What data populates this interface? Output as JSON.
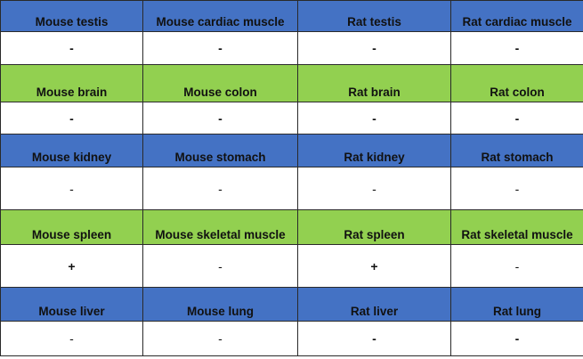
{
  "colors": {
    "blue_header": "#4472c4",
    "green_header": "#92d050",
    "border": "#2a2a2a"
  },
  "rows": [
    {
      "header_color": "blue",
      "labels": [
        "Mouse testis",
        "Mouse cardiac muscle",
        "Rat testis",
        "Rat cardiac muscle"
      ],
      "values": [
        "-",
        "-",
        "-",
        "-"
      ]
    },
    {
      "header_color": "green",
      "labels": [
        "Mouse brain",
        "Mouse colon",
        "Rat brain",
        "Rat colon"
      ],
      "values": [
        "-",
        "-",
        "-",
        "-"
      ]
    },
    {
      "header_color": "blue",
      "labels": [
        "Mouse kidney",
        "Mouse stomach",
        "Rat kidney",
        "Rat stomach"
      ],
      "values": [
        "-",
        "-",
        "-",
        "-"
      ]
    },
    {
      "header_color": "green",
      "labels": [
        "Mouse spleen",
        "Mouse skeletal muscle",
        "Rat spleen",
        "Rat skeletal muscle"
      ],
      "values": [
        "+",
        "-",
        "+",
        "-"
      ]
    },
    {
      "header_color": "blue",
      "labels": [
        "Mouse liver",
        "Mouse lung",
        "Rat liver",
        "Rat lung"
      ],
      "values": [
        "-",
        "-",
        "-",
        "-"
      ]
    }
  ]
}
